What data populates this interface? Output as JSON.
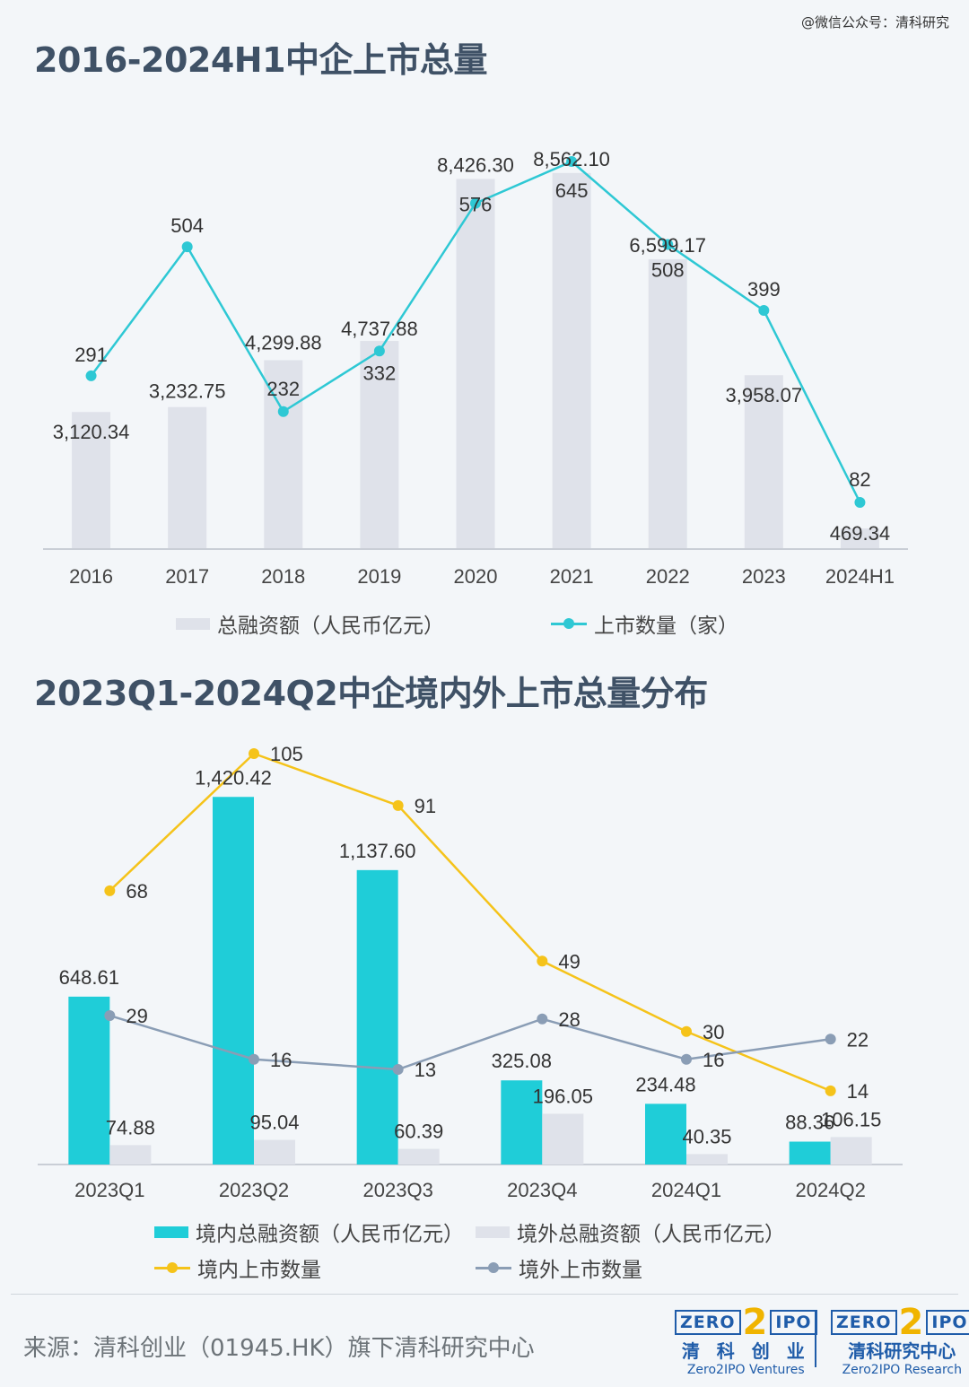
{
  "watermark": "@微信公众号：清科研究",
  "chart_data": [
    {
      "type": "bar",
      "title": "2016-2024H1中企上市总量",
      "categories": [
        "2016",
        "2017",
        "2018",
        "2019",
        "2020",
        "2021",
        "2022",
        "2023",
        "2024H1"
      ],
      "series": [
        {
          "name": "总融资额（人民币亿元）",
          "kind": "bar",
          "color": "#dfe2ea",
          "values": [
            3120.34,
            3232.75,
            4299.88,
            4737.88,
            8426.3,
            8562.1,
            6599.17,
            3958.07,
            469.34
          ],
          "labels": [
            "3,120.34",
            "3,232.75",
            "4,299.88",
            "4,737.88",
            "8,426.30",
            "8,562.10",
            "6,599.17",
            "3,958.07",
            "469.34"
          ]
        },
        {
          "name": "上市数量（家）",
          "kind": "line",
          "color": "#2ec8d4",
          "values": [
            291,
            504,
            232,
            332,
            576,
            645,
            508,
            399,
            82
          ],
          "labels": [
            "291",
            "504",
            "232",
            "332",
            "576",
            "645",
            "508",
            "399",
            "82"
          ]
        }
      ],
      "legend_position": "bottom",
      "grid": false
    },
    {
      "type": "bar",
      "title": "2023Q1-2024Q2中企境内外上市总量分布",
      "categories": [
        "2023Q1",
        "2023Q2",
        "2023Q3",
        "2023Q4",
        "2024Q1",
        "2024Q2"
      ],
      "series": [
        {
          "name": "境内总融资额（人民币亿元）",
          "kind": "bar",
          "color": "#1fcdd8",
          "values": [
            648.61,
            1420.42,
            1137.6,
            325.08,
            234.48,
            88.36
          ],
          "labels": [
            "648.61",
            "1,420.42",
            "1,137.60",
            "325.08",
            "234.48",
            "88.36"
          ]
        },
        {
          "name": "境外总融资额（人民币亿元）",
          "kind": "bar",
          "color": "#dfe2ea",
          "values": [
            74.88,
            95.04,
            60.39,
            196.05,
            40.35,
            106.15
          ],
          "labels": [
            "74.88",
            "95.04",
            "60.39",
            "196.05",
            "40.35",
            "106.15"
          ]
        },
        {
          "name": "境内上市数量",
          "kind": "line",
          "color": "#f5c31a",
          "values": [
            68,
            105,
            91,
            49,
            30,
            14
          ],
          "labels": [
            "68",
            "105",
            "91",
            "49",
            "30",
            "14"
          ]
        },
        {
          "name": "境外上市数量",
          "kind": "line",
          "color": "#8a9db5",
          "values": [
            29,
            16,
            13,
            28,
            16,
            22
          ],
          "labels": [
            "29",
            "16",
            "13",
            "28",
            "16",
            "22"
          ]
        }
      ],
      "legend_position": "bottom",
      "grid": false
    }
  ],
  "footer": {
    "source": "来源：清科创业（01945.HK）旗下清科研究中心",
    "logo_left": {
      "box_left": "ZERO",
      "box_mid": "2",
      "box_right": "IPO",
      "cn": "清 科 创 业",
      "en": "Zero2IPO Ventures"
    },
    "logo_right": {
      "box_left": "ZERO",
      "box_mid": "2",
      "box_right": "IPO",
      "cn": "清科研究中心",
      "en": "Zero2IPO Research"
    }
  }
}
